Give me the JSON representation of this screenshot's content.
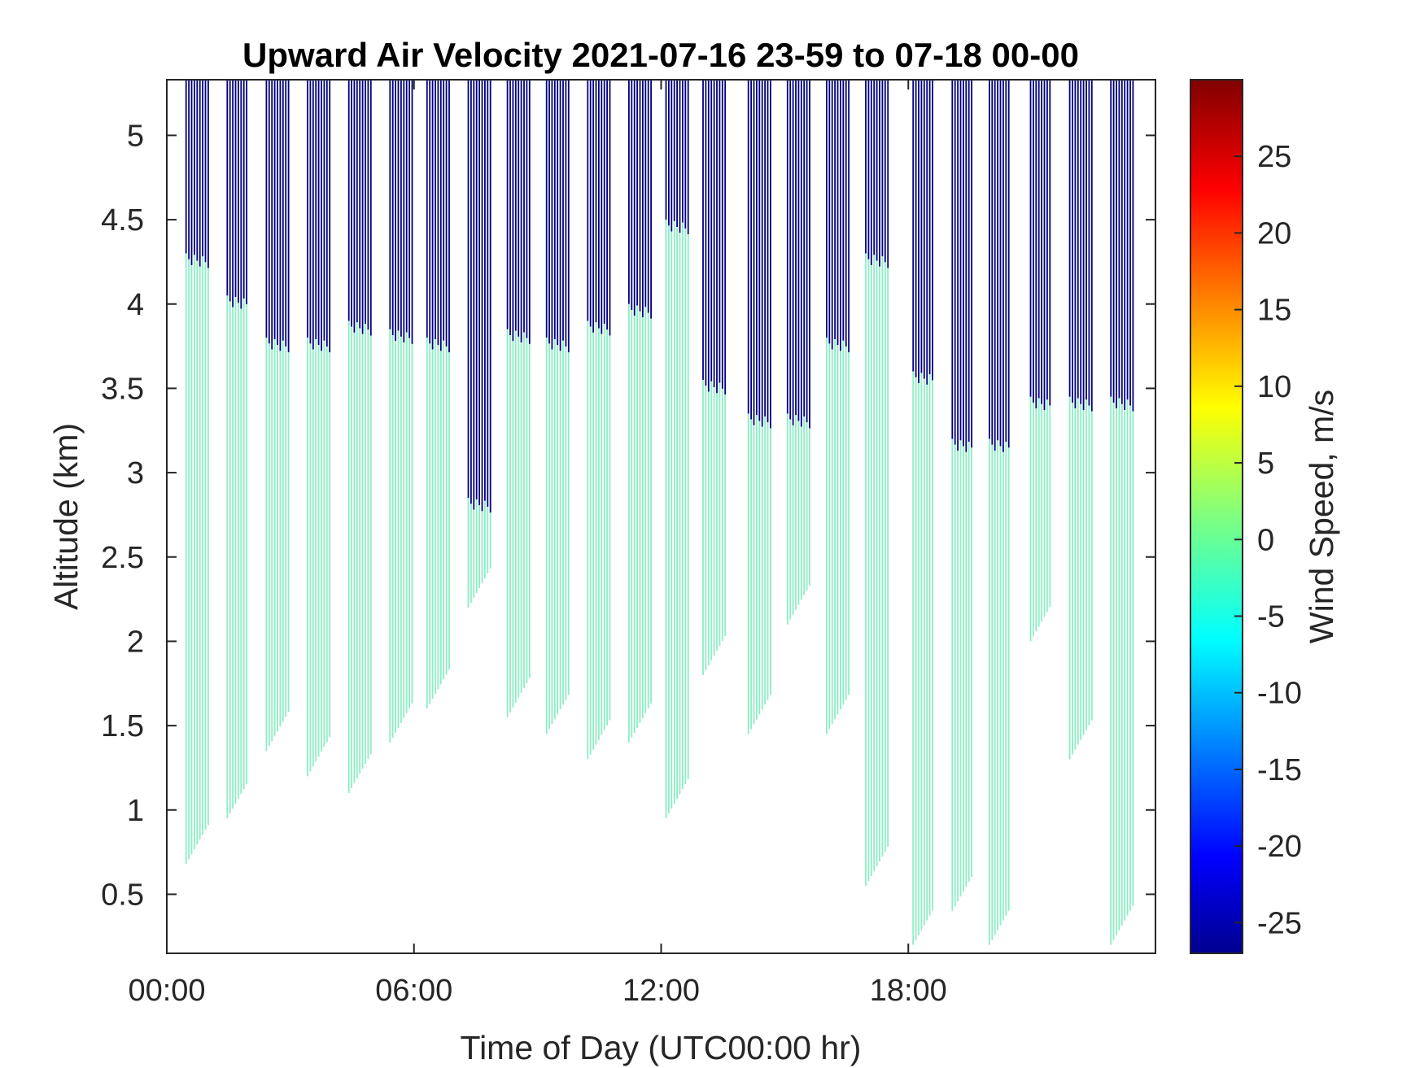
{
  "chart_data": {
    "type": "heatmap",
    "title": "Upward Air Velocity 2021-07-16 23-59 to 07-18 00-00",
    "xlabel": "Time of Day (UTC00:00 hr)",
    "ylabel": "Altitude (km)",
    "xlim": [
      0,
      24
    ],
    "ylim": [
      0.15,
      5.33
    ],
    "x_ticks": [
      {
        "value": 0,
        "label": "00:00"
      },
      {
        "value": 6,
        "label": "06:00"
      },
      {
        "value": 12,
        "label": "12:00"
      },
      {
        "value": 18,
        "label": "18:00"
      }
    ],
    "y_ticks": [
      {
        "value": 0.5,
        "label": "0.5"
      },
      {
        "value": 1,
        "label": "1"
      },
      {
        "value": 1.5,
        "label": "1.5"
      },
      {
        "value": 2,
        "label": "2"
      },
      {
        "value": 2.5,
        "label": "2.5"
      },
      {
        "value": 3,
        "label": "3"
      },
      {
        "value": 3.5,
        "label": "3.5"
      },
      {
        "value": 4,
        "label": "4"
      },
      {
        "value": 4.5,
        "label": "4.5"
      },
      {
        "value": 5,
        "label": "5"
      }
    ],
    "colorbar": {
      "label": "Wind Speed, m/s",
      "range": [
        -27,
        30
      ],
      "colormap": "jet",
      "ticks": [
        {
          "value": 25,
          "label": "25"
        },
        {
          "value": 20,
          "label": "20"
        },
        {
          "value": 15,
          "label": "15"
        },
        {
          "value": 10,
          "label": "10"
        },
        {
          "value": 5,
          "label": "5"
        },
        {
          "value": 0,
          "label": "0"
        },
        {
          "value": -5,
          "label": "-5"
        },
        {
          "value": -10,
          "label": "-10"
        },
        {
          "value": -15,
          "label": "-15"
        },
        {
          "value": -20,
          "label": "-20"
        },
        {
          "value": -25,
          "label": "-25"
        }
      ]
    },
    "grid": false,
    "upper_value": -27,
    "lower_value": 0,
    "columns": [
      {
        "x": [
          0.45,
          1.05
        ],
        "bottom": 0.68,
        "mid": 4.3,
        "top": 5.33
      },
      {
        "x": [
          1.45,
          1.95
        ],
        "bottom": 0.95,
        "mid": 4.05,
        "top": 5.33
      },
      {
        "x": [
          2.4,
          3.0
        ],
        "bottom": 1.35,
        "mid": 3.8,
        "top": 5.33
      },
      {
        "x": [
          3.4,
          4.0
        ],
        "bottom": 1.2,
        "mid": 3.8,
        "top": 5.33
      },
      {
        "x": [
          4.4,
          4.95
        ],
        "bottom": 1.1,
        "mid": 3.9,
        "top": 5.33
      },
      {
        "x": [
          5.4,
          6.0
        ],
        "bottom": 1.4,
        "mid": 3.85,
        "top": 5.33
      },
      {
        "x": [
          6.3,
          6.85
        ],
        "bottom": 1.6,
        "mid": 3.8,
        "top": 5.33
      },
      {
        "x": [
          7.3,
          7.85
        ],
        "bottom": 2.2,
        "mid": 2.85,
        "top": 5.33
      },
      {
        "x": [
          8.25,
          8.85
        ],
        "bottom": 1.55,
        "mid": 3.85,
        "top": 5.33
      },
      {
        "x": [
          9.2,
          9.8
        ],
        "bottom": 1.45,
        "mid": 3.8,
        "top": 5.33
      },
      {
        "x": [
          10.2,
          10.75
        ],
        "bottom": 1.3,
        "mid": 3.9,
        "top": 5.33
      },
      {
        "x": [
          11.2,
          11.75
        ],
        "bottom": 1.4,
        "mid": 4.0,
        "top": 5.33
      },
      {
        "x": [
          12.1,
          12.65
        ],
        "bottom": 0.95,
        "mid": 4.5,
        "top": 5.33
      },
      {
        "x": [
          13.0,
          13.55
        ],
        "bottom": 1.8,
        "mid": 3.55,
        "top": 5.33
      },
      {
        "x": [
          14.1,
          14.65
        ],
        "bottom": 1.45,
        "mid": 3.35,
        "top": 5.33
      },
      {
        "x": [
          15.05,
          15.6
        ],
        "bottom": 2.1,
        "mid": 3.35,
        "top": 5.33
      },
      {
        "x": [
          16.0,
          16.55
        ],
        "bottom": 1.45,
        "mid": 3.8,
        "top": 5.33
      },
      {
        "x": [
          16.95,
          17.5
        ],
        "bottom": 0.55,
        "mid": 4.3,
        "top": 5.33
      },
      {
        "x": [
          18.1,
          18.6
        ],
        "bottom": 0.2,
        "mid": 3.6,
        "top": 5.33
      },
      {
        "x": [
          19.05,
          19.55
        ],
        "bottom": 0.4,
        "mid": 3.2,
        "top": 5.33
      },
      {
        "x": [
          19.95,
          20.45
        ],
        "bottom": 0.2,
        "mid": 3.2,
        "top": 5.33
      },
      {
        "x": [
          20.95,
          21.45
        ],
        "bottom": 2.0,
        "mid": 3.45,
        "top": 5.33
      },
      {
        "x": [
          21.9,
          22.45
        ],
        "bottom": 1.3,
        "mid": 3.45,
        "top": 5.33
      },
      {
        "x": [
          22.9,
          23.45
        ],
        "bottom": 0.2,
        "mid": 3.45,
        "top": 5.33
      }
    ]
  }
}
